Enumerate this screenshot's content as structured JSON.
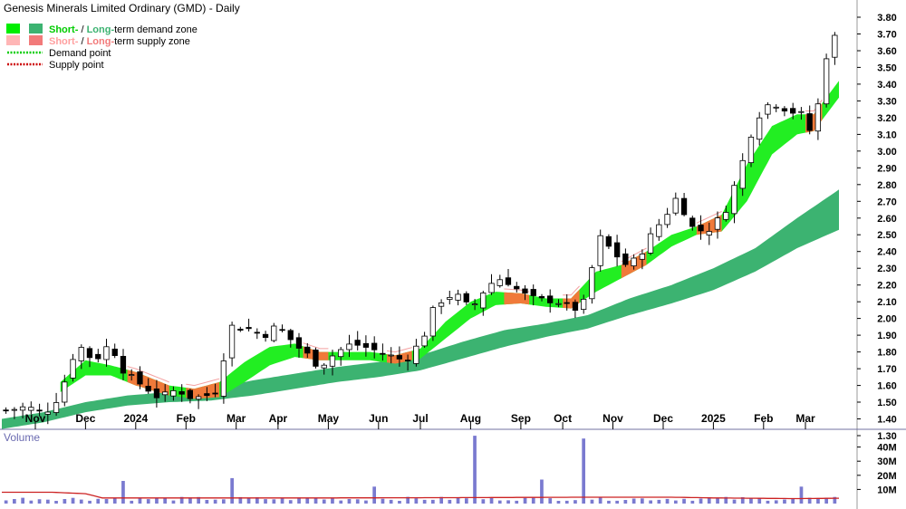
{
  "chart_data": {
    "type": "candlestick",
    "title": "Genesis Minerals Limited Ordinary (GMD) - Daily",
    "legend": {
      "placement": "top-left",
      "items": [
        {
          "id": "demand_zone",
          "swatches": [
            "#00ee00",
            "#3cb371"
          ],
          "label_parts": [
            {
              "text": "Short-",
              "color": "#00cc00"
            },
            {
              "text": " / ",
              "color": "#000000"
            },
            {
              "text": "Long-",
              "color": "#3cb371"
            },
            {
              "text": "term demand zone",
              "color": "#000000"
            }
          ]
        },
        {
          "id": "supply_zone",
          "swatches": [
            "#ffb6b6",
            "#f27a7a"
          ],
          "label_parts": [
            {
              "text": "Short-",
              "color": "#ff9f9f"
            },
            {
              "text": " / ",
              "color": "#000000"
            },
            {
              "text": "Long-",
              "color": "#f27a7a"
            },
            {
              "text": "term supply zone",
              "color": "#000000"
            }
          ]
        },
        {
          "id": "demand_point",
          "line_color": "#00cc00",
          "label_parts": [
            {
              "text": "Demand point",
              "color": "#000000"
            }
          ]
        },
        {
          "id": "supply_point",
          "line_color": "#cc0000",
          "label_parts": [
            {
              "text": "Supply point",
              "color": "#000000"
            }
          ]
        }
      ]
    },
    "price_axis": {
      "min": 1.3,
      "max": 3.8,
      "side": "right",
      "ticks": [
        "1.30",
        "1.40",
        "1.50",
        "1.60",
        "1.70",
        "1.80",
        "1.90",
        "2.00",
        "2.10",
        "2.20",
        "2.30",
        "2.40",
        "2.50",
        "2.60",
        "2.70",
        "2.80",
        "2.90",
        "3.00",
        "3.10",
        "3.20",
        "3.30",
        "3.40",
        "3.50",
        "3.60",
        "3.70",
        "3.80"
      ]
    },
    "x_axis": {
      "bar_count": 100,
      "month_ticks": [
        {
          "label": "Nov",
          "bar": 4
        },
        {
          "label": "Dec",
          "bar": 10
        },
        {
          "label": "2024",
          "bar": 16
        },
        {
          "label": "Feb",
          "bar": 22
        },
        {
          "label": "Mar",
          "bar": 28
        },
        {
          "label": "Apr",
          "bar": 33
        },
        {
          "label": "May",
          "bar": 39
        },
        {
          "label": "Jun",
          "bar": 45
        },
        {
          "label": "Jul",
          "bar": 50
        },
        {
          "label": "Aug",
          "bar": 56
        },
        {
          "label": "Sep",
          "bar": 62
        },
        {
          "label": "Oct",
          "bar": 67
        },
        {
          "label": "Nov",
          "bar": 73
        },
        {
          "label": "Dec",
          "bar": 79
        },
        {
          "label": "2025",
          "bar": 85
        },
        {
          "label": "Feb",
          "bar": 91
        },
        {
          "label": "Mar",
          "bar": 96
        }
      ]
    },
    "close_path": [
      [
        0,
        1.45
      ],
      [
        3,
        1.47
      ],
      [
        5,
        1.43
      ],
      [
        7,
        1.55
      ],
      [
        9,
        1.85
      ],
      [
        11,
        1.75
      ],
      [
        13,
        1.85
      ],
      [
        15,
        1.65
      ],
      [
        17,
        1.6
      ],
      [
        19,
        1.52
      ],
      [
        21,
        1.58
      ],
      [
        23,
        1.52
      ],
      [
        25,
        1.55
      ],
      [
        26,
        1.6
      ],
      [
        27,
        1.95
      ],
      [
        29,
        1.95
      ],
      [
        31,
        1.9
      ],
      [
        33,
        1.95
      ],
      [
        35,
        1.85
      ],
      [
        36,
        1.8
      ],
      [
        38,
        1.72
      ],
      [
        40,
        1.8
      ],
      [
        42,
        1.85
      ],
      [
        44,
        1.82
      ],
      [
        46,
        1.78
      ],
      [
        48,
        1.75
      ],
      [
        50,
        1.85
      ],
      [
        52,
        2.1
      ],
      [
        54,
        2.15
      ],
      [
        56,
        2.05
      ],
      [
        58,
        2.2
      ],
      [
        60,
        2.25
      ],
      [
        62,
        2.15
      ],
      [
        64,
        2.1
      ],
      [
        66,
        2.12
      ],
      [
        68,
        2.05
      ],
      [
        70,
        2.1
      ],
      [
        71,
        2.5
      ],
      [
        73,
        2.4
      ],
      [
        75,
        2.3
      ],
      [
        77,
        2.45
      ],
      [
        79,
        2.6
      ],
      [
        81,
        2.75
      ],
      [
        82,
        2.55
      ],
      [
        84,
        2.52
      ],
      [
        86,
        2.6
      ],
      [
        88,
        2.85
      ],
      [
        90,
        3.2
      ],
      [
        92,
        3.3
      ],
      [
        94,
        3.25
      ],
      [
        96,
        3.2
      ],
      [
        97,
        3.05
      ],
      [
        98,
        3.5
      ],
      [
        99,
        3.65
      ],
      [
        100,
        3.7
      ]
    ],
    "demand_zone_short": {
      "upper": [
        [
          7,
          1.62
        ],
        [
          10,
          1.75
        ],
        [
          13,
          1.72
        ],
        [
          16,
          1.68
        ],
        [
          20,
          1.6
        ],
        [
          23,
          1.58
        ],
        [
          26,
          1.62
        ],
        [
          29,
          1.74
        ],
        [
          32,
          1.83
        ],
        [
          35,
          1.85
        ],
        [
          38,
          1.8
        ],
        [
          41,
          1.8
        ],
        [
          44,
          1.8
        ],
        [
          47,
          1.78
        ],
        [
          50,
          1.82
        ],
        [
          53,
          1.98
        ],
        [
          56,
          2.1
        ],
        [
          59,
          2.16
        ],
        [
          62,
          2.15
        ],
        [
          65,
          2.12
        ],
        [
          68,
          2.12
        ],
        [
          71,
          2.28
        ],
        [
          74,
          2.32
        ],
        [
          77,
          2.4
        ],
        [
          80,
          2.5
        ],
        [
          83,
          2.55
        ],
        [
          86,
          2.62
        ],
        [
          89,
          2.92
        ],
        [
          92,
          3.15
        ],
        [
          95,
          3.22
        ],
        [
          97,
          3.22
        ],
        [
          100,
          3.42
        ]
      ],
      "lower": [
        [
          7,
          1.56
        ],
        [
          10,
          1.66
        ],
        [
          13,
          1.66
        ],
        [
          16,
          1.6
        ],
        [
          20,
          1.54
        ],
        [
          23,
          1.52
        ],
        [
          26,
          1.53
        ],
        [
          29,
          1.62
        ],
        [
          32,
          1.72
        ],
        [
          35,
          1.77
        ],
        [
          38,
          1.75
        ],
        [
          41,
          1.75
        ],
        [
          44,
          1.75
        ],
        [
          47,
          1.73
        ],
        [
          50,
          1.76
        ],
        [
          53,
          1.88
        ],
        [
          56,
          2.0
        ],
        [
          59,
          2.08
        ],
        [
          62,
          2.09
        ],
        [
          65,
          2.07
        ],
        [
          68,
          2.06
        ],
        [
          71,
          2.16
        ],
        [
          74,
          2.24
        ],
        [
          77,
          2.32
        ],
        [
          80,
          2.43
        ],
        [
          83,
          2.5
        ],
        [
          86,
          2.52
        ],
        [
          89,
          2.7
        ],
        [
          92,
          2.98
        ],
        [
          95,
          3.1
        ],
        [
          97,
          3.12
        ],
        [
          100,
          3.32
        ]
      ]
    },
    "demand_zone_long": {
      "upper": [
        [
          0,
          1.4
        ],
        [
          5,
          1.44
        ],
        [
          10,
          1.5
        ],
        [
          15,
          1.54
        ],
        [
          20,
          1.56
        ],
        [
          25,
          1.58
        ],
        [
          30,
          1.63
        ],
        [
          35,
          1.67
        ],
        [
          40,
          1.71
        ],
        [
          45,
          1.74
        ],
        [
          50,
          1.78
        ],
        [
          55,
          1.86
        ],
        [
          60,
          1.93
        ],
        [
          65,
          1.97
        ],
        [
          70,
          2.02
        ],
        [
          75,
          2.12
        ],
        [
          80,
          2.2
        ],
        [
          85,
          2.3
        ],
        [
          90,
          2.42
        ],
        [
          95,
          2.6
        ],
        [
          100,
          2.77
        ]
      ],
      "lower": [
        [
          0,
          1.34
        ],
        [
          5,
          1.38
        ],
        [
          10,
          1.44
        ],
        [
          15,
          1.48
        ],
        [
          20,
          1.5
        ],
        [
          25,
          1.51
        ],
        [
          30,
          1.54
        ],
        [
          35,
          1.58
        ],
        [
          40,
          1.62
        ],
        [
          45,
          1.65
        ],
        [
          50,
          1.69
        ],
        [
          55,
          1.76
        ],
        [
          60,
          1.83
        ],
        [
          65,
          1.89
        ],
        [
          70,
          1.94
        ],
        [
          75,
          2.02
        ],
        [
          80,
          2.09
        ],
        [
          85,
          2.17
        ],
        [
          90,
          2.28
        ],
        [
          95,
          2.42
        ],
        [
          100,
          2.53
        ]
      ]
    },
    "supply_segments": [
      [
        15,
        20
      ],
      [
        22,
        26
      ],
      [
        36,
        39
      ],
      [
        46,
        49
      ],
      [
        60,
        63
      ],
      [
        67,
        69
      ],
      [
        74,
        77
      ],
      [
        83,
        86
      ],
      [
        96,
        98
      ]
    ],
    "volume": {
      "label": "Volume",
      "unit": "M",
      "ticks": [
        {
          "value": 10,
          "label": "10M"
        },
        {
          "value": 20,
          "label": "20M"
        },
        {
          "value": 30,
          "label": "30M"
        },
        {
          "value": 40,
          "label": "40M"
        }
      ],
      "max": 50,
      "baseline_level": 3.2,
      "spikes": [
        [
          14,
          16
        ],
        [
          27,
          18
        ],
        [
          44,
          12
        ],
        [
          56,
          48
        ],
        [
          64,
          17
        ],
        [
          69,
          46
        ],
        [
          95,
          12
        ]
      ],
      "average_path": [
        [
          0,
          8
        ],
        [
          6,
          8
        ],
        [
          10,
          7
        ],
        [
          12,
          4
        ],
        [
          20,
          4
        ],
        [
          40,
          4
        ],
        [
          55,
          4.2
        ],
        [
          70,
          4.5
        ],
        [
          80,
          4.5
        ],
        [
          85,
          4
        ],
        [
          95,
          3.5
        ],
        [
          100,
          3.8
        ]
      ]
    }
  }
}
